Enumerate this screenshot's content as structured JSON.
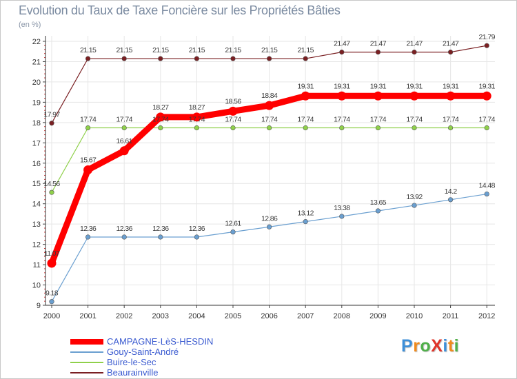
{
  "chart_data": {
    "type": "line",
    "title": "Evolution du Taux de Taxe Foncière sur les Propriétés Bâties",
    "subtitle": "(en %)",
    "xlabel": "",
    "ylabel": "(en %)",
    "ylim": [
      9,
      22
    ],
    "yticks": [
      9,
      10,
      11,
      12,
      13,
      14,
      15,
      16,
      17,
      18,
      19,
      20,
      21,
      22
    ],
    "grid": true,
    "legend_position": "bottom-left",
    "categories": [
      "2000",
      "2001",
      "2002",
      "2003",
      "2004",
      "2005",
      "2006",
      "2007",
      "2008",
      "2009",
      "2010",
      "2011",
      "2012"
    ],
    "series": [
      {
        "name": "Beaurainville",
        "color": "#7a1f22",
        "emphasis": "thin",
        "values": [
          17.97,
          21.15,
          21.15,
          21.15,
          21.15,
          21.15,
          21.15,
          21.15,
          21.47,
          21.47,
          21.47,
          21.47,
          21.79
        ]
      },
      {
        "name": "Buire-le-Sec",
        "color": "#8fd04a",
        "emphasis": "thin",
        "values": [
          14.56,
          17.74,
          17.74,
          17.74,
          17.74,
          17.74,
          17.74,
          17.74,
          17.74,
          17.74,
          17.74,
          17.74,
          17.74
        ]
      },
      {
        "name": "Gouy-Saint-André",
        "color": "#6a9fd0",
        "emphasis": "thin",
        "values": [
          9.18,
          12.36,
          12.36,
          12.36,
          12.36,
          12.61,
          12.86,
          13.12,
          13.38,
          13.65,
          13.92,
          14.2,
          14.48
        ]
      },
      {
        "name": "CAMPAGNE-LèS-HESDIN",
        "color": "#ff0000",
        "emphasis": "bold",
        "values": [
          11.07,
          15.67,
          16.61,
          18.27,
          18.27,
          18.56,
          18.84,
          19.31,
          19.31,
          19.31,
          19.31,
          19.31,
          19.31
        ]
      }
    ],
    "legend_order": [
      "CAMPAGNE-LèS-HESDIN",
      "Gouy-Saint-André",
      "Buire-le-Sec",
      "Beaurainville"
    ]
  },
  "legend": {
    "items": [
      {
        "label": "CAMPAGNE-LèS-HESDIN",
        "color": "#ff0000"
      },
      {
        "label": "Gouy-Saint-André",
        "color": "#6a9fd0"
      },
      {
        "label": "Buire-le-Sec",
        "color": "#8fd04a"
      },
      {
        "label": "Beaurainville",
        "color": "#7a1f22"
      }
    ]
  },
  "logo": {
    "text": "ProXiti",
    "letters": [
      {
        "char": "P",
        "color": "#3d8fd8"
      },
      {
        "char": "r",
        "color": "#f08a1c"
      },
      {
        "char": "o",
        "color": "#4fb04a"
      },
      {
        "char": "X",
        "color": "#e0342a"
      },
      {
        "char": "i",
        "color": "#3d8fd8"
      },
      {
        "char": "t",
        "color": "#f08a1c"
      },
      {
        "char": "i",
        "color": "#4fb04a"
      }
    ]
  }
}
